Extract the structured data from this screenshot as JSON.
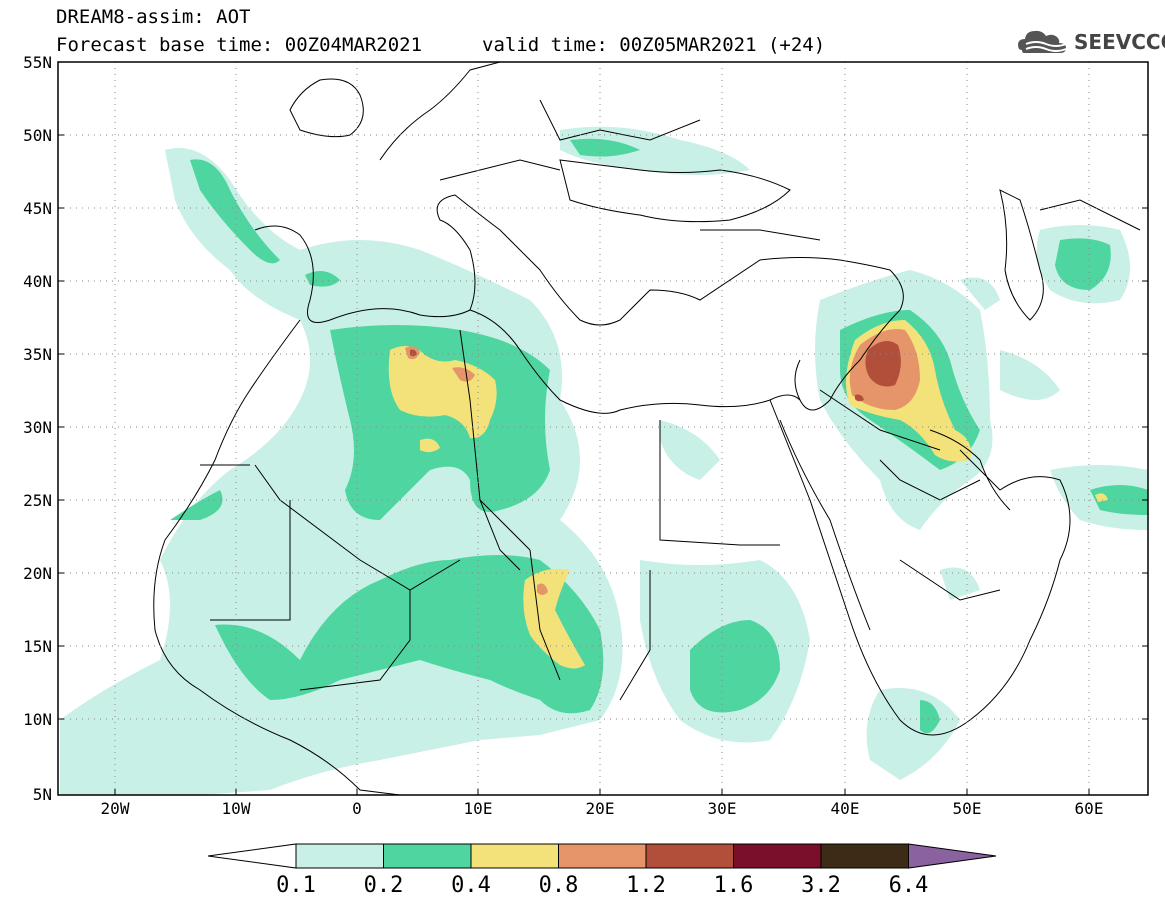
{
  "title": {
    "line1": "DREAM8-assim: AOT",
    "line2": "Forecast base time: 00Z04MAR2021",
    "valid": "valid time: 00Z05MAR2021 (+24)"
  },
  "logo": {
    "text": "SEEVCCC",
    "icon": "cloud-icon"
  },
  "axes": {
    "lat_labels": [
      "55N",
      "50N",
      "45N",
      "40N",
      "35N",
      "30N",
      "25N",
      "20N",
      "15N",
      "10N",
      "5N"
    ],
    "lon_labels": [
      "20W",
      "10W",
      "0",
      "10E",
      "20E",
      "30E",
      "40E",
      "50E",
      "60E"
    ]
  },
  "colorbar": {
    "labels": [
      "0.1",
      "0.2",
      "0.4",
      "0.8",
      "1.2",
      "1.6",
      "3.2",
      "6.4"
    ],
    "colors": [
      "#ffffff",
      "#c8f0e6",
      "#4fd6a0",
      "#f3e27a",
      "#e6946a",
      "#b24f3a",
      "#7a0f2a",
      "#3d2a17",
      "#8a62a0"
    ]
  }
}
